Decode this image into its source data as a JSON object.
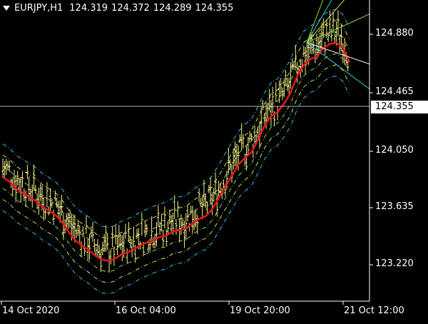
{
  "header": {
    "symbol": "EURJPY,H1",
    "open": "124.319",
    "high": "124.372",
    "low": "124.289",
    "close": "124.355"
  },
  "price_axis": {
    "labels": [
      "124.880",
      "124.465",
      "124.050",
      "123.635",
      "123.220"
    ],
    "current_price": "124.355"
  },
  "time_axis": {
    "labels": [
      "14 Oct 2020",
      "16 Oct 04:00",
      "19 Oct 20:00",
      "21 Oct 12:00"
    ]
  },
  "colors": {
    "background": "#000000",
    "bars": "#f5f08a",
    "ma_line": "#e8141c",
    "band_inner": "#9bd23a",
    "band_mid": "#c6e84a",
    "band_outer": "#2ec9d6",
    "axis": "#ffffff",
    "bid_line": "#b0b0b0"
  },
  "chart_data": {
    "type": "line",
    "instrument": "EURJPY",
    "timeframe": "H1",
    "ylim": [
      123.0,
      125.15
    ],
    "ma_series": [
      123.85,
      123.82,
      123.77,
      123.74,
      123.71,
      123.68,
      123.64,
      123.61,
      123.58,
      123.53,
      123.46,
      123.4,
      123.36,
      123.33,
      123.29,
      123.26,
      123.25,
      123.26,
      123.29,
      123.31,
      123.33,
      123.36,
      123.38,
      123.4,
      123.42,
      123.43,
      123.46,
      123.47,
      123.48,
      123.52,
      123.55,
      123.57,
      123.62,
      123.7,
      123.78,
      123.86,
      123.94,
      123.99,
      124.03,
      124.12,
      124.22,
      124.29,
      124.32,
      124.38,
      124.46,
      124.58,
      124.66,
      124.7,
      124.72,
      124.78,
      124.81,
      124.82,
      124.78,
      124.68
    ]
  }
}
